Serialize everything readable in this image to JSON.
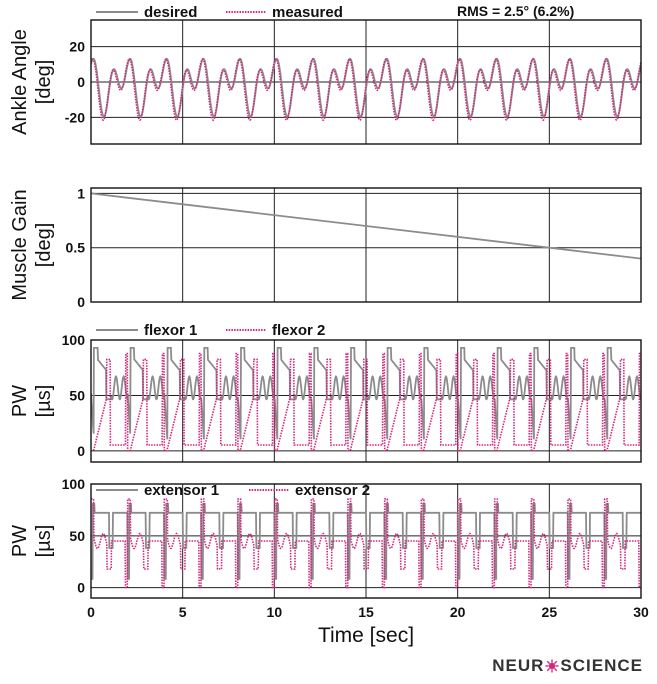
{
  "colors": {
    "desired": "#8c8c8c",
    "measured": "#d4267f",
    "grid": "#222222",
    "axis": "#111111"
  },
  "x_axis": {
    "label": "Time [sec]",
    "ticks": [
      "0",
      "5",
      "10",
      "15",
      "20",
      "25",
      "30"
    ]
  },
  "brand": {
    "prefix": "NEUR",
    "suffix": "SCIENCE",
    "icon": "neuron-icon"
  },
  "chart_data": [
    {
      "type": "line",
      "ylabel": "Ankle Angle [deg]",
      "ylabel_lines": [
        "Ankle Angle",
        "[deg]"
      ],
      "ylim": [
        -35,
        35
      ],
      "yticks": [
        -20,
        0,
        20
      ],
      "ytick_labels": [
        "-20",
        "0",
        "20"
      ],
      "xlim": [
        0,
        30
      ],
      "grid": true,
      "legend_placement": "top",
      "annotation": "RMS = 2.5° (6.2%)",
      "series": [
        {
          "name": "desired",
          "style": "solid",
          "color": "#8c8c8c",
          "period": 2.0,
          "range": [
            -20,
            18
          ]
        },
        {
          "name": "measured",
          "style": "dotted",
          "color": "#d4267f",
          "period": 2.0,
          "range": [
            -22,
            18
          ]
        }
      ]
    },
    {
      "type": "line",
      "ylabel": "Muscle Gain [deg]",
      "ylabel_lines": [
        "Muscle Gain",
        "[deg]"
      ],
      "ylim": [
        0,
        1.05
      ],
      "yticks": [
        0,
        0.5,
        1
      ],
      "ytick_labels": [
        "0",
        "0.5",
        "1"
      ],
      "xlim": [
        0,
        30
      ],
      "grid": true,
      "series": [
        {
          "style": "solid",
          "color": "#8c8c8c",
          "x": [
            0,
            30
          ],
          "y": [
            1.0,
            0.4
          ]
        }
      ]
    },
    {
      "type": "line",
      "ylabel": "PW [µs]",
      "ylabel_lines": [
        "PW",
        "[µs]"
      ],
      "ylim": [
        -10,
        100
      ],
      "yticks": [
        0,
        50,
        100
      ],
      "ytick_labels": [
        "0",
        "50",
        "100"
      ],
      "xlim": [
        0,
        30
      ],
      "grid": true,
      "legend_placement": "top",
      "series": [
        {
          "name": "flexor 1",
          "style": "solid",
          "color": "#8c8c8c",
          "period": 2.0,
          "range": [
            -5,
            98
          ]
        },
        {
          "name": "flexor 2",
          "style": "dotted",
          "color": "#d4267f",
          "period": 2.0,
          "range": [
            -5,
            98
          ]
        }
      ]
    },
    {
      "type": "line",
      "ylabel": "PW [µs]",
      "ylabel_lines": [
        "PW",
        "[µs]"
      ],
      "ylim": [
        -10,
        100
      ],
      "yticks": [
        0,
        50,
        100
      ],
      "ytick_labels": [
        "0",
        "50",
        "100"
      ],
      "xlim": [
        0,
        30
      ],
      "grid": true,
      "legend_placement": "top",
      "series": [
        {
          "name": "extensor 1",
          "style": "solid",
          "color": "#8c8c8c",
          "period": 2.0,
          "range": [
            0,
            85
          ]
        },
        {
          "name": "extensor 2",
          "style": "dotted",
          "color": "#d4267f",
          "period": 2.0,
          "range": [
            0,
            90
          ]
        }
      ]
    }
  ]
}
